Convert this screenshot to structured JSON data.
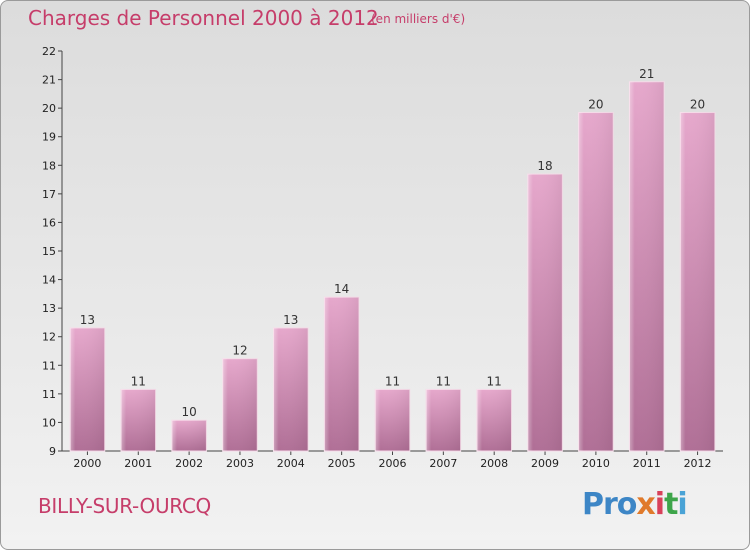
{
  "header": {
    "title": "Charges de Personnel 2000 à 2012",
    "subtitle": "(en milliers d'€)"
  },
  "footer": {
    "commune": "BILLY-SUR-OURCQ",
    "logo": [
      "Pro",
      "x",
      "i",
      "t",
      "i"
    ]
  },
  "colors": {
    "title": "#c63d6a",
    "bar_top": "#e6a8cc",
    "bar_bottom": "#b06f96"
  },
  "chart_data": {
    "type": "bar",
    "title": "Charges de Personnel 2000 à 2012",
    "subtitle": "(en milliers d'€)",
    "categories": [
      "2000",
      "2001",
      "2002",
      "2003",
      "2004",
      "2005",
      "2006",
      "2007",
      "2008",
      "2009",
      "2010",
      "2011",
      "2012"
    ],
    "values": [
      13,
      11,
      10,
      12,
      13,
      14,
      11,
      11,
      11,
      18,
      20,
      21,
      20
    ],
    "y_ticks": [
      "9",
      "10",
      "11",
      "11",
      "12",
      "13",
      "14",
      "15",
      "16",
      "17",
      "18",
      "19",
      "20",
      "21",
      "22"
    ],
    "ylim": [
      9,
      22
    ],
    "grid": false,
    "legend": "none"
  }
}
